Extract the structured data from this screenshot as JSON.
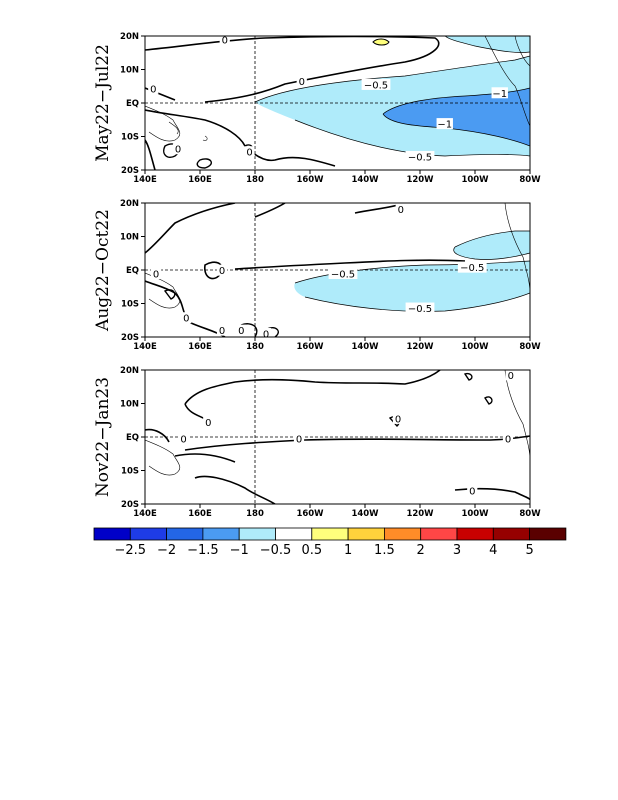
{
  "colors": {
    "neg_2_5": "#0000c8",
    "neg_2": "#1e3ce6",
    "neg_1_5": "#2366e6",
    "neg_1": "#4b9bf2",
    "neg_0_5": "#afebfa",
    "zero": "#ffffff",
    "pos_0_5": "#ffff7d",
    "pos_1": "#ffd23c",
    "pos_1_5": "#ff8c28",
    "pos_2": "#ff4646",
    "pos_3": "#c80000",
    "pos_4": "#960000",
    "pos_5": "#5a0000"
  },
  "axes": {
    "x_ticks": [
      "140E",
      "160E",
      "180",
      "160W",
      "140W",
      "120W",
      "100W",
      "80W"
    ],
    "y_ticks": [
      "20N",
      "10N",
      "EQ",
      "10S",
      "20S"
    ]
  },
  "panels": [
    {
      "id": "may-jul",
      "title": "May22−Jul22",
      "labels": [
        {
          "text": "0",
          "lon": 169,
          "lat": 18.8
        },
        {
          "text": "0",
          "lon": 197,
          "lat": 6.4
        },
        {
          "text": "0",
          "lon": 143,
          "lat": 4.2
        },
        {
          "text": "0",
          "lon": 152,
          "lat": -13.8
        },
        {
          "text": "0",
          "lon": 178,
          "lat": -14.7
        },
        {
          "text": "−0.5",
          "lon": 224,
          "lat": 5.4
        },
        {
          "text": "−1",
          "lon": 269,
          "lat": 2.9
        },
        {
          "text": "−1",
          "lon": 249,
          "lat": -6.3
        },
        {
          "text": "−0.5",
          "lon": 240,
          "lat": -16.1
        }
      ]
    },
    {
      "id": "aug-oct",
      "title": "Aug22−Oct22",
      "labels": [
        {
          "text": "0",
          "lon": 233,
          "lat": 18.1
        },
        {
          "text": "0",
          "lon": 168,
          "lat": -0.2
        },
        {
          "text": "0",
          "lon": 144,
          "lat": -1.2
        },
        {
          "text": "0",
          "lon": 155,
          "lat": -14.4
        },
        {
          "text": "0",
          "lon": 168,
          "lat": -18.1
        },
        {
          "text": "0",
          "lon": 175,
          "lat": -18.1
        },
        {
          "text": "0",
          "lon": 184,
          "lat": -19.1
        },
        {
          "text": "−0.5",
          "lon": 212,
          "lat": -1.2
        },
        {
          "text": "−0.5",
          "lon": 259,
          "lat": 0.7
        },
        {
          "text": "−0.5",
          "lon": 240,
          "lat": -11.5
        }
      ]
    },
    {
      "id": "nov-jan",
      "title": "Nov22−Jan23",
      "labels": [
        {
          "text": "0",
          "lon": 163,
          "lat": 4.4
        },
        {
          "text": "0",
          "lon": 232,
          "lat": 5.4
        },
        {
          "text": "0",
          "lon": 154,
          "lat": -0.6
        },
        {
          "text": "0",
          "lon": 196,
          "lat": -0.6
        },
        {
          "text": "0",
          "lon": 272,
          "lat": -0.6
        },
        {
          "text": "0",
          "lon": 259,
          "lat": -16.1
        },
        {
          "text": "0",
          "lon": 273,
          "lat": 18.4
        }
      ]
    }
  ],
  "colorbar": {
    "labels": [
      "−2.5",
      "−2",
      "−1.5",
      "−1",
      "−0.5",
      "0.5",
      "1",
      "1.5",
      "2",
      "3",
      "4",
      "5"
    ]
  }
}
